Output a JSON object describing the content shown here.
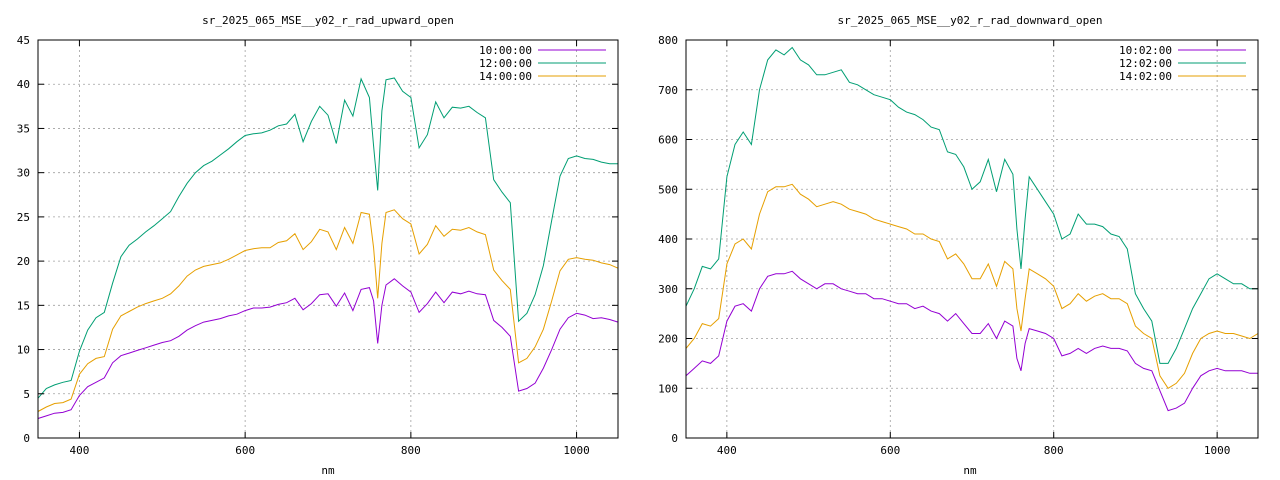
{
  "chart_data": [
    {
      "type": "line",
      "title": "sr_2025_065_MSE__y02_r_rad_upward_open",
      "xlabel": "nm",
      "ylabel": "",
      "xlim": [
        350,
        1050
      ],
      "ylim": [
        0,
        45
      ],
      "xticks": [
        400,
        600,
        800,
        1000
      ],
      "yticks": [
        0,
        5,
        10,
        15,
        20,
        25,
        30,
        35,
        40,
        45
      ],
      "grid": true,
      "legend_position": "top-right",
      "x": [
        350,
        360,
        370,
        380,
        390,
        400,
        410,
        420,
        430,
        440,
        450,
        460,
        470,
        480,
        490,
        500,
        510,
        520,
        530,
        540,
        550,
        560,
        570,
        580,
        590,
        600,
        610,
        620,
        630,
        640,
        650,
        660,
        670,
        680,
        690,
        700,
        710,
        720,
        730,
        740,
        750,
        755,
        760,
        765,
        770,
        780,
        790,
        800,
        810,
        820,
        830,
        840,
        850,
        860,
        870,
        880,
        890,
        900,
        910,
        920,
        930,
        940,
        950,
        960,
        970,
        980,
        990,
        1000,
        1010,
        1020,
        1030,
        1040,
        1050
      ],
      "series": [
        {
          "name": "10:00:00",
          "color": "#9400d3",
          "values": [
            2.2,
            2.5,
            2.8,
            2.9,
            3.2,
            4.8,
            5.8,
            6.3,
            6.8,
            8.5,
            9.3,
            9.6,
            9.9,
            10.2,
            10.5,
            10.8,
            11.0,
            11.5,
            12.2,
            12.7,
            13.1,
            13.3,
            13.5,
            13.8,
            14.0,
            14.4,
            14.7,
            14.7,
            14.8,
            15.1,
            15.3,
            15.8,
            14.5,
            15.2,
            16.2,
            16.3,
            14.9,
            16.4,
            14.4,
            16.8,
            17.0,
            15.5,
            10.7,
            15.0,
            17.3,
            18.0,
            17.2,
            16.5,
            14.2,
            15.2,
            16.5,
            15.3,
            16.5,
            16.3,
            16.6,
            16.3,
            16.2,
            13.3,
            12.5,
            11.5,
            5.3,
            5.6,
            6.2,
            7.9,
            10.0,
            12.3,
            13.6,
            14.1,
            13.9,
            13.5,
            13.6,
            13.4,
            13.1
          ]
        },
        {
          "name": "12:00:00",
          "color": "#009e73",
          "values": [
            4.5,
            5.6,
            6.0,
            6.3,
            6.5,
            9.8,
            12.2,
            13.6,
            14.2,
            17.5,
            20.5,
            21.8,
            22.5,
            23.3,
            24.0,
            24.8,
            25.6,
            27.3,
            28.8,
            30.0,
            30.8,
            31.3,
            32.0,
            32.7,
            33.5,
            34.2,
            34.4,
            34.5,
            34.8,
            35.3,
            35.5,
            36.6,
            33.5,
            35.8,
            37.5,
            36.5,
            33.3,
            38.2,
            36.4,
            40.6,
            38.5,
            33.0,
            28.0,
            37.0,
            40.5,
            40.7,
            39.2,
            38.5,
            32.8,
            34.3,
            38.0,
            36.2,
            37.4,
            37.3,
            37.5,
            36.8,
            36.2,
            29.2,
            27.8,
            26.6,
            13.2,
            14.1,
            16.2,
            19.5,
            24.6,
            29.6,
            31.6,
            31.9,
            31.6,
            31.5,
            31.2,
            31.0,
            31.0
          ]
        },
        {
          "name": "14:00:00",
          "color": "#e69f00",
          "values": [
            3.0,
            3.5,
            3.9,
            4.0,
            4.4,
            7.2,
            8.4,
            9.0,
            9.2,
            12.3,
            13.8,
            14.3,
            14.8,
            15.2,
            15.5,
            15.8,
            16.3,
            17.2,
            18.3,
            19.0,
            19.4,
            19.6,
            19.8,
            20.2,
            20.7,
            21.2,
            21.4,
            21.5,
            21.5,
            22.1,
            22.3,
            23.1,
            21.3,
            22.2,
            23.6,
            23.3,
            21.3,
            23.8,
            22.0,
            25.5,
            25.3,
            21.5,
            15.8,
            22.0,
            25.5,
            25.8,
            24.8,
            24.2,
            20.8,
            21.9,
            24.0,
            22.8,
            23.6,
            23.5,
            23.8,
            23.3,
            23.0,
            19.0,
            17.8,
            16.8,
            8.5,
            9.0,
            10.3,
            12.3,
            15.5,
            18.9,
            20.2,
            20.4,
            20.2,
            20.1,
            19.8,
            19.6,
            19.2
          ]
        }
      ]
    },
    {
      "type": "line",
      "title": "sr_2025_065_MSE__y02_r_rad_downward_open",
      "xlabel": "nm",
      "ylabel": "",
      "xlim": [
        350,
        1050
      ],
      "ylim": [
        0,
        800
      ],
      "xticks": [
        400,
        600,
        800,
        1000
      ],
      "yticks": [
        0,
        100,
        200,
        300,
        400,
        500,
        600,
        700,
        800
      ],
      "grid": true,
      "legend_position": "top-right",
      "x": [
        350,
        360,
        370,
        380,
        390,
        400,
        410,
        420,
        430,
        440,
        450,
        460,
        470,
        480,
        490,
        500,
        510,
        520,
        530,
        540,
        550,
        560,
        570,
        580,
        590,
        600,
        610,
        620,
        630,
        640,
        650,
        660,
        670,
        680,
        690,
        700,
        710,
        720,
        730,
        740,
        750,
        755,
        760,
        765,
        770,
        780,
        790,
        800,
        810,
        820,
        830,
        840,
        850,
        860,
        870,
        880,
        890,
        900,
        910,
        920,
        930,
        940,
        950,
        960,
        970,
        980,
        990,
        1000,
        1010,
        1020,
        1030,
        1040,
        1050
      ],
      "series": [
        {
          "name": "10:02:00",
          "color": "#9400d3",
          "values": [
            125,
            140,
            155,
            150,
            165,
            235,
            265,
            270,
            255,
            300,
            325,
            330,
            330,
            335,
            320,
            310,
            300,
            310,
            310,
            300,
            295,
            290,
            290,
            280,
            280,
            275,
            270,
            270,
            260,
            265,
            255,
            250,
            235,
            250,
            230,
            210,
            210,
            230,
            200,
            235,
            225,
            160,
            135,
            190,
            220,
            215,
            210,
            200,
            165,
            170,
            180,
            170,
            180,
            185,
            180,
            180,
            175,
            150,
            140,
            135,
            95,
            55,
            60,
            70,
            100,
            125,
            135,
            140,
            135,
            135,
            135,
            130,
            130
          ]
        },
        {
          "name": "12:02:00",
          "color": "#009e73",
          "values": [
            265,
            300,
            345,
            340,
            360,
            525,
            590,
            615,
            590,
            700,
            760,
            780,
            770,
            785,
            760,
            750,
            730,
            730,
            735,
            740,
            715,
            710,
            700,
            690,
            685,
            680,
            665,
            655,
            650,
            640,
            625,
            620,
            575,
            570,
            545,
            500,
            515,
            560,
            495,
            560,
            530,
            420,
            340,
            440,
            525,
            500,
            475,
            450,
            400,
            410,
            450,
            430,
            430,
            425,
            410,
            405,
            380,
            290,
            260,
            235,
            150,
            150,
            180,
            220,
            260,
            290,
            320,
            330,
            320,
            310,
            310,
            300,
            300
          ]
        },
        {
          "name": "14:02:00",
          "color": "#e69f00",
          "values": [
            180,
            200,
            230,
            225,
            240,
            350,
            390,
            400,
            380,
            450,
            495,
            505,
            505,
            510,
            490,
            480,
            465,
            470,
            475,
            470,
            460,
            455,
            450,
            440,
            435,
            430,
            425,
            420,
            410,
            410,
            400,
            395,
            360,
            370,
            350,
            320,
            320,
            350,
            305,
            355,
            340,
            260,
            215,
            280,
            340,
            330,
            320,
            305,
            260,
            270,
            290,
            275,
            285,
            290,
            280,
            280,
            270,
            225,
            210,
            200,
            125,
            100,
            110,
            130,
            170,
            200,
            210,
            215,
            210,
            210,
            205,
            200,
            210
          ]
        }
      ]
    }
  ]
}
